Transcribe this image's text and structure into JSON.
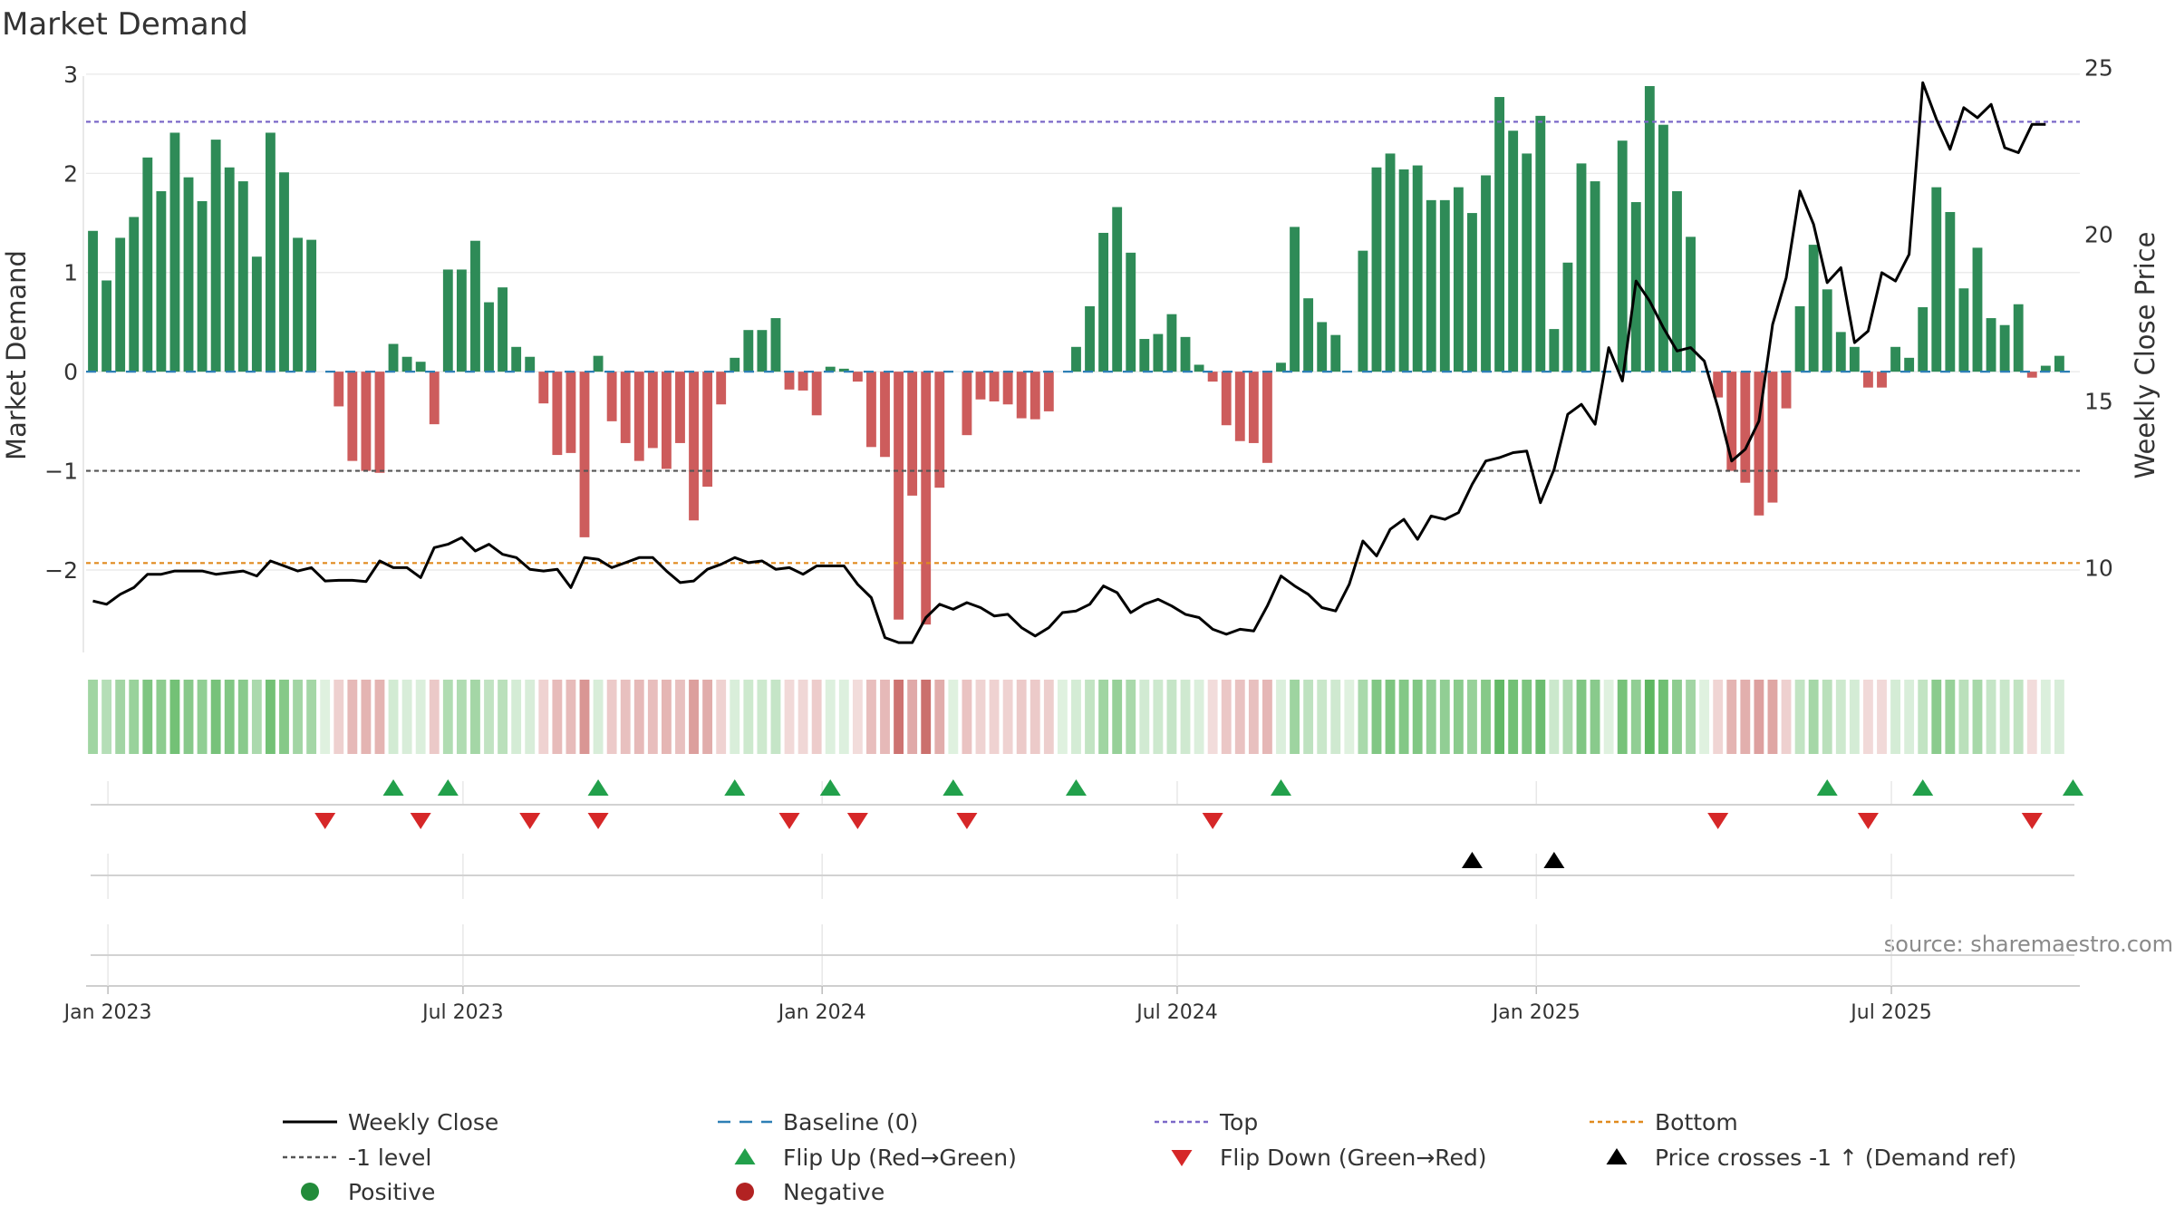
{
  "chart_data": {
    "type": "bar",
    "title": "Market Demand",
    "ylabel_left": "Market Demand",
    "ylabel_right": "Weekly Close Price",
    "ylim_left": [
      -2.85,
      3.2
    ],
    "ylim_right": [
      7.4,
      25.4
    ],
    "left_ticks": [
      3,
      2,
      1,
      0,
      -1,
      -2
    ],
    "left_tick_labels": [
      "3",
      "2",
      "1",
      "0",
      "−1",
      "−2"
    ],
    "right_ticks": [
      25,
      20,
      15,
      10
    ],
    "right_tick_labels": [
      "25",
      "20",
      "15",
      "10"
    ],
    "x_tick_labels": [
      "Jan 2023",
      "Jul 2023",
      "Jan 2024",
      "Jul 2024",
      "Jan 2025",
      "Jul 2025"
    ],
    "x_tick_weeks": [
      1.1,
      27.1,
      53.4,
      79.4,
      105.7,
      131.7
    ],
    "week_count": 146,
    "demand": [
      1.42,
      0.92,
      1.35,
      1.56,
      2.16,
      1.82,
      2.41,
      1.96,
      1.72,
      2.34,
      2.06,
      1.92,
      1.16,
      2.41,
      2.01,
      1.35,
      1.33,
      0.0,
      -0.35,
      -0.9,
      -1.0,
      -1.02,
      0.28,
      0.15,
      0.1,
      -0.53,
      1.03,
      1.03,
      1.32,
      0.7,
      0.85,
      0.25,
      0.15,
      -0.32,
      -0.84,
      -0.82,
      -1.67,
      0.16,
      -0.5,
      -0.72,
      -0.9,
      -0.77,
      -0.98,
      -0.72,
      -1.5,
      -1.16,
      -0.33,
      0.14,
      0.42,
      0.42,
      0.54,
      -0.18,
      -0.19,
      -0.44,
      0.05,
      0.03,
      -0.1,
      -0.76,
      -0.86,
      -2.5,
      -1.25,
      -2.55,
      -1.17,
      0.0,
      -0.64,
      -0.28,
      -0.3,
      -0.33,
      -0.47,
      -0.48,
      -0.4,
      0.0,
      0.25,
      0.66,
      1.4,
      1.66,
      1.2,
      0.33,
      0.38,
      0.58,
      0.35,
      0.07,
      -0.1,
      -0.54,
      -0.7,
      -0.72,
      -0.92,
      0.09,
      1.46,
      0.74,
      0.5,
      0.37,
      0.0,
      1.22,
      2.06,
      2.2,
      2.04,
      2.08,
      1.73,
      1.73,
      1.86,
      1.6,
      1.98,
      2.77,
      2.43,
      2.2,
      2.58,
      0.43,
      1.1,
      2.1,
      1.92,
      0.0,
      2.33,
      1.71,
      2.88,
      2.49,
      1.82,
      1.36,
      0.0,
      -0.26,
      -1.0,
      -1.12,
      -1.45,
      -1.32,
      -0.37,
      0.66,
      1.28,
      0.83,
      0.4,
      0.25,
      -0.16,
      -0.16,
      0.25,
      0.14,
      0.65,
      1.86,
      1.61,
      0.84,
      1.25,
      0.54,
      0.47,
      0.68,
      -0.06,
      0.06,
      0.16
    ],
    "weekly_close": [
      9.0,
      8.9,
      9.2,
      9.4,
      9.8,
      9.8,
      9.9,
      9.9,
      9.9,
      9.8,
      9.85,
      9.9,
      9.75,
      10.2,
      10.05,
      9.9,
      10.0,
      9.6,
      9.62,
      9.62,
      9.58,
      10.2,
      10.0,
      10.0,
      9.7,
      10.6,
      10.7,
      10.9,
      10.5,
      10.7,
      10.4,
      10.3,
      9.95,
      9.9,
      9.95,
      9.4,
      10.3,
      10.25,
      10.0,
      10.15,
      10.3,
      10.3,
      9.9,
      9.55,
      9.6,
      9.95,
      10.1,
      10.3,
      10.15,
      10.2,
      9.95,
      10.0,
      9.8,
      10.05,
      10.05,
      10.05,
      9.5,
      9.1,
      7.9,
      7.75,
      7.75,
      8.5,
      8.9,
      8.75,
      8.95,
      8.8,
      8.55,
      8.6,
      8.2,
      7.95,
      8.2,
      8.65,
      8.7,
      8.9,
      9.45,
      9.25,
      8.65,
      8.9,
      9.05,
      8.85,
      8.6,
      8.5,
      8.15,
      8.0,
      8.15,
      8.1,
      8.85,
      9.75,
      9.45,
      9.2,
      8.8,
      8.7,
      9.5,
      10.8,
      10.35,
      11.15,
      11.45,
      10.85,
      11.55,
      11.45,
      11.65,
      12.5,
      13.2,
      13.3,
      13.45,
      13.5,
      11.95,
      12.95,
      14.6,
      14.9,
      14.3,
      16.6,
      15.6,
      18.6,
      18.0,
      17.2,
      16.5,
      16.6,
      16.2,
      14.8,
      13.2,
      13.55,
      14.4,
      17.3,
      18.7,
      21.3,
      20.3,
      18.55,
      19.0,
      16.75,
      17.1,
      18.85,
      18.6,
      19.4,
      24.55,
      23.45,
      22.55,
      23.8,
      23.5,
      23.9,
      22.6,
      22.45,
      23.3,
      23.3
    ],
    "reference_lines": {
      "top": 2.52,
      "minus_one": -1.0,
      "bottom": -1.93,
      "baseline": 0
    },
    "flip_up_weeks": [
      22,
      26,
      37,
      47,
      54,
      63,
      72,
      87,
      127,
      134,
      145
    ],
    "flip_down_weeks": [
      17,
      24,
      32,
      37,
      51,
      56,
      64,
      82,
      119,
      130,
      142
    ],
    "price_cross_weeks": [
      101,
      107
    ],
    "annotations": {
      "source": "source: sharemaestro.com"
    },
    "legend": [
      {
        "label": "Weekly Close",
        "symbol": "line-solid",
        "color": "#000000"
      },
      {
        "label": "Baseline (0)",
        "symbol": "line-dash",
        "color": "#2d7fb5"
      },
      {
        "label": "Top",
        "symbol": "line-dot",
        "color": "#7b68c8"
      },
      {
        "label": "Bottom",
        "symbol": "line-dot",
        "color": "#e08a1e"
      },
      {
        "label": "-1 level",
        "symbol": "line-dot",
        "color": "#555555"
      },
      {
        "label": "Flip Up (Red→Green)",
        "symbol": "triangle-up",
        "color": "#22a04b"
      },
      {
        "label": "Flip Down (Green→Red)",
        "symbol": "triangle-down",
        "color": "#d62728"
      },
      {
        "label": "Price crosses -1 ↑ (Demand ref)",
        "symbol": "triangle-up",
        "color": "#000000"
      },
      {
        "label": "Positive",
        "symbol": "dot",
        "color": "#228b3a"
      },
      {
        "label": "Negative",
        "symbol": "dot",
        "color": "#b22222"
      }
    ],
    "legend_placement": "bottom",
    "colors": {
      "positive_bar": "#2e8b57",
      "negative_bar": "#cd5c5c",
      "price_line": "#000000",
      "top_line": "#7b68c8",
      "bottom_line": "#e08a1e",
      "minus_one_line": "#555555",
      "baseline": "#2d7fb5",
      "heat_positive": "#4caf50",
      "heat_negative": "#c0504d",
      "flip_up": "#22a04b",
      "flip_down": "#d62728",
      "cross": "#000000",
      "grid": "#e8e8e8"
    }
  }
}
